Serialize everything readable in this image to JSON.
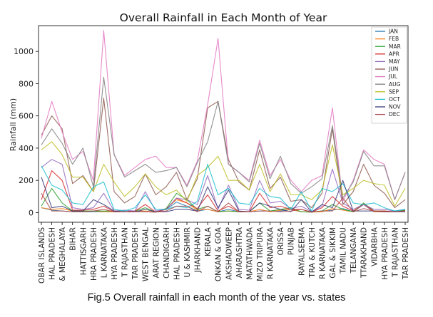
{
  "chart_data": {
    "type": "line",
    "title": "Overall Rainfall in Each Month of Year",
    "xlabel": "",
    "ylabel": "Rainfall (mm)",
    "ylim": [
      -60,
      1160
    ],
    "yticks": [
      0,
      200,
      400,
      600,
      800,
      1000
    ],
    "grid": false,
    "legend_position": "top-right",
    "categories": [
      "OBAR ISLANDS",
      "HAL PRADESH",
      "& MEGHALAYA",
      "BIHAR",
      "HATTISGARH",
      "HRA PRADESH",
      "L KARNATAKA",
      "HYA PRADESH",
      "T RAJASTHAN",
      "TAR PRADESH",
      "WEST BENGAL",
      "ARAT REGION",
      "CHANDIGARH",
      "HAL PRADESH",
      "U & KASHMIR",
      "JHARKHAND",
      "KERALA",
      "ONKAN & GOA",
      "AKSHADWEEP",
      "AHARASHTRA",
      "MATATHWADA",
      "MIZO TRIPURA",
      "R KARNATAKA",
      "ORISSA",
      "PUNJAB",
      "RAYALSEEMA",
      "TRA & KUTCH",
      "R KARNATAKA",
      "GAL & SIKKIM",
      "TAMIL NADU",
      "TELANGANA",
      "TTARAKHAND",
      "VIDARBHA",
      "HYA PRADESH",
      "T RAJASTHAN",
      "TAR PRADESH"
    ],
    "series": [
      {
        "name": "JAN",
        "color": "#1f77b4",
        "values": [
          30,
          15,
          10,
          5,
          5,
          5,
          5,
          5,
          5,
          10,
          5,
          3,
          20,
          65,
          40,
          10,
          20,
          5,
          20,
          5,
          5,
          10,
          10,
          10,
          20,
          5,
          3,
          10,
          15,
          25,
          5,
          50,
          5,
          5,
          5,
          15
        ]
      },
      {
        "name": "FEB",
        "color": "#ff7f0e",
        "values": [
          30,
          20,
          25,
          10,
          10,
          10,
          5,
          5,
          5,
          10,
          10,
          3,
          25,
          80,
          60,
          15,
          20,
          5,
          10,
          5,
          5,
          20,
          5,
          15,
          20,
          5,
          3,
          5,
          25,
          15,
          5,
          55,
          5,
          5,
          5,
          15
        ]
      },
      {
        "name": "MAR",
        "color": "#2ca02c",
        "values": [
          40,
          150,
          60,
          10,
          10,
          10,
          10,
          10,
          5,
          10,
          30,
          3,
          25,
          120,
          80,
          20,
          40,
          5,
          10,
          5,
          5,
          60,
          10,
          20,
          30,
          5,
          3,
          10,
          50,
          20,
          5,
          60,
          10,
          10,
          5,
          15
        ]
      },
      {
        "name": "APR",
        "color": "#d62728",
        "values": [
          80,
          260,
          200,
          15,
          15,
          20,
          40,
          5,
          5,
          10,
          50,
          3,
          20,
          90,
          60,
          25,
          110,
          10,
          40,
          5,
          5,
          120,
          30,
          40,
          20,
          20,
          3,
          30,
          100,
          40,
          10,
          50,
          10,
          10,
          5,
          10
        ]
      },
      {
        "name": "MAY",
        "color": "#9467bd",
        "values": [
          280,
          330,
          300,
          30,
          20,
          30,
          120,
          10,
          15,
          10,
          130,
          10,
          20,
          90,
          80,
          50,
          230,
          20,
          170,
          20,
          15,
          200,
          60,
          70,
          25,
          40,
          5,
          40,
          270,
          60,
          20,
          50,
          20,
          20,
          10,
          20
        ]
      },
      {
        "name": "JUN",
        "color": "#8c564b",
        "values": [
          480,
          600,
          520,
          180,
          230,
          130,
          710,
          130,
          60,
          100,
          240,
          110,
          160,
          250,
          80,
          210,
          650,
          690,
          330,
          190,
          140,
          390,
          150,
          220,
          70,
          80,
          30,
          120,
          520,
          50,
          130,
          300,
          170,
          120,
          30,
          80
        ]
      },
      {
        "name": "JUL",
        "color": "#e377c2",
        "values": [
          460,
          690,
          500,
          330,
          380,
          200,
          1130,
          360,
          230,
          280,
          330,
          350,
          280,
          280,
          170,
          320,
          670,
          1080,
          300,
          250,
          200,
          450,
          230,
          330,
          200,
          130,
          200,
          230,
          650,
          70,
          200,
          390,
          330,
          300,
          80,
          250
        ]
      },
      {
        "name": "AUG",
        "color": "#7f7f7f",
        "values": [
          420,
          520,
          430,
          300,
          400,
          160,
          840,
          360,
          220,
          260,
          300,
          250,
          260,
          280,
          160,
          310,
          440,
          690,
          300,
          250,
          190,
          430,
          210,
          350,
          180,
          120,
          160,
          210,
          540,
          90,
          190,
          380,
          290,
          290,
          80,
          250
        ]
      },
      {
        "name": "SEP",
        "color": "#bcbd22",
        "values": [
          390,
          440,
          360,
          220,
          220,
          130,
          300,
          190,
          100,
          160,
          240,
          160,
          110,
          140,
          70,
          230,
          280,
          350,
          200,
          200,
          140,
          300,
          130,
          240,
          110,
          110,
          80,
          140,
          420,
          110,
          150,
          200,
          180,
          170,
          40,
          150
        ]
      },
      {
        "name": "OCT",
        "color": "#17becf",
        "values": [
          290,
          170,
          140,
          60,
          50,
          160,
          190,
          20,
          10,
          30,
          110,
          20,
          20,
          40,
          30,
          70,
          300,
          110,
          150,
          60,
          50,
          150,
          100,
          90,
          20,
          130,
          10,
          150,
          130,
          180,
          60,
          50,
          60,
          30,
          10,
          20
        ]
      },
      {
        "name": "NOV",
        "color": "#393b79",
        "values": [
          220,
          30,
          40,
          10,
          10,
          80,
          50,
          10,
          5,
          5,
          20,
          5,
          5,
          20,
          20,
          10,
          160,
          30,
          140,
          10,
          5,
          60,
          40,
          20,
          5,
          80,
          3,
          50,
          30,
          200,
          10,
          10,
          10,
          5,
          5,
          5
        ]
      },
      {
        "name": "DEC",
        "color": "#ad494a",
        "values": [
          120,
          10,
          10,
          5,
          5,
          10,
          20,
          5,
          5,
          5,
          5,
          3,
          10,
          40,
          40,
          5,
          40,
          5,
          60,
          5,
          5,
          10,
          10,
          5,
          10,
          20,
          3,
          10,
          10,
          90,
          5,
          25,
          10,
          5,
          5,
          10
        ]
      }
    ]
  },
  "caption": "Fig.5 Overall rainfall in each month of the year vs. states"
}
